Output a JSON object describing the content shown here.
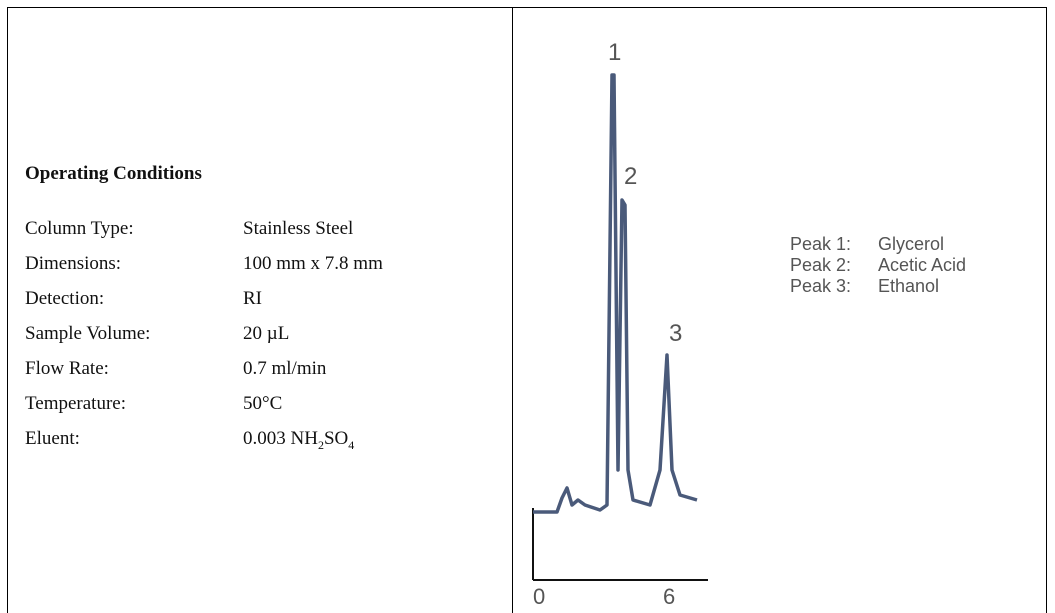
{
  "conditions": {
    "title": "Operating Conditions",
    "rows": [
      {
        "label": "Column Type:",
        "value": "Stainless Steel"
      },
      {
        "label": "Dimensions:",
        "value": "100 mm x 7.8 mm"
      },
      {
        "label": "Detection:",
        "value": "RI"
      },
      {
        "label": "Sample Volume:",
        "value": "20 µL"
      },
      {
        "label": "Flow Rate:",
        "value": "0.7 ml/min"
      },
      {
        "label": "Temperature:",
        "value": "50°C"
      },
      {
        "label": "Eluent:",
        "value": [
          {
            "text": "0.003 NH"
          },
          {
            "sub": "2"
          },
          {
            "text": "SO"
          },
          {
            "sub": "4"
          }
        ]
      }
    ]
  },
  "chromatogram": {
    "peak_numbers": [
      "1",
      "2",
      "3"
    ],
    "axis_labels": [
      "0",
      "6"
    ],
    "legend": [
      {
        "peak": "Peak 1:",
        "compound": "Glycerol"
      },
      {
        "peak": "Peak 2:",
        "compound": "Acetic Acid"
      },
      {
        "peak": "Peak 3:",
        "compound": "Ethanol"
      }
    ]
  }
}
